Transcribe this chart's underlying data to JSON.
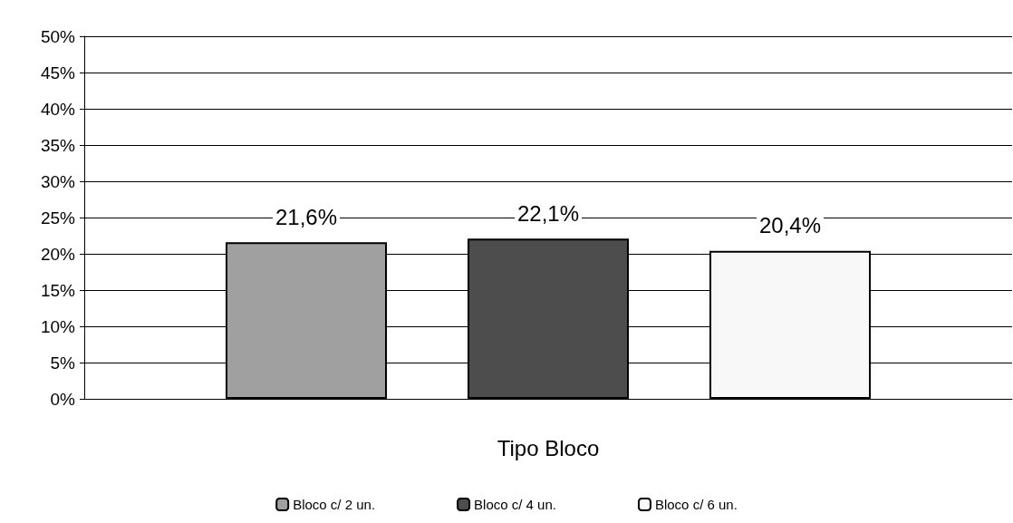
{
  "chart_data": {
    "type": "bar",
    "xlabel": "Tipo Bloco",
    "categories": [
      null
    ],
    "series": [
      {
        "name": "Bloco c/ 2 un.",
        "color": "#a0a0a0",
        "values": [
          21.6
        ],
        "value_labels": [
          "21,6%"
        ]
      },
      {
        "name": "Bloco c/ 4 un.",
        "color": "#4d4d4d",
        "values": [
          22.1
        ],
        "value_labels": [
          "22,1%"
        ]
      },
      {
        "name": "Bloco c/ 6 un.",
        "color": "#f8f8f8",
        "values": [
          20.4
        ],
        "value_labels": [
          "20,4%"
        ]
      }
    ],
    "ylim": [
      0,
      50
    ],
    "yticks": [
      {
        "value": 0,
        "label": "0%"
      },
      {
        "value": 5,
        "label": "5%"
      },
      {
        "value": 10,
        "label": "10%"
      },
      {
        "value": 15,
        "label": "15%"
      },
      {
        "value": 20,
        "label": "20%"
      },
      {
        "value": 25,
        "label": "25%"
      },
      {
        "value": 30,
        "label": "30%"
      },
      {
        "value": 35,
        "label": "35%"
      },
      {
        "value": 40,
        "label": "40%"
      },
      {
        "value": 45,
        "label": "45%"
      },
      {
        "value": 50,
        "label": "50%"
      }
    ],
    "grid": "y",
    "legend": "bottom"
  }
}
